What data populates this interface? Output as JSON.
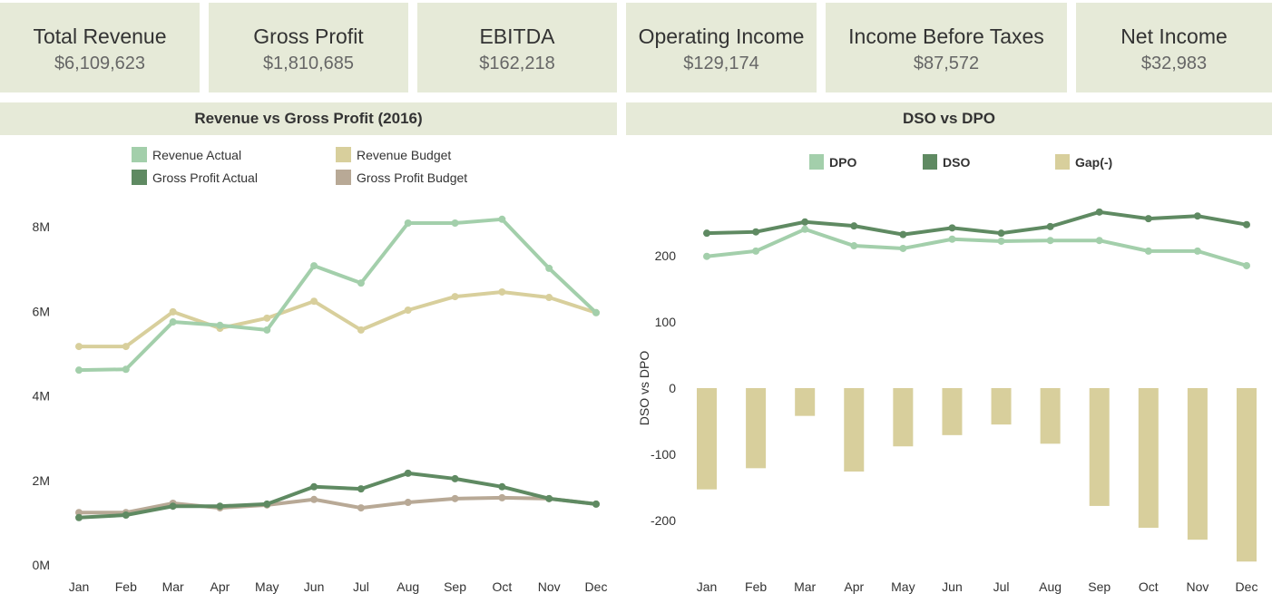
{
  "kpis": [
    {
      "label": "Total Revenue",
      "value": "$6,109,623"
    },
    {
      "label": "Gross Profit",
      "value": "$1,810,685"
    },
    {
      "label": "EBITDA",
      "value": "$162,218"
    },
    {
      "label": "Operating Income",
      "value": "$129,174"
    },
    {
      "label": "Income Before Taxes",
      "value": "$87,572"
    },
    {
      "label": "Net Income",
      "value": "$32,983"
    }
  ],
  "colors": {
    "revenue_actual": "#a3cfab",
    "revenue_budget": "#d8cf9c",
    "gp_actual": "#5f8a62",
    "gp_budget": "#b8a996",
    "header_bg": "#e6ead8"
  },
  "chart_data": [
    {
      "type": "line",
      "title": "Revenue vs Gross Profit (2016)",
      "categories": [
        "Jan",
        "Feb",
        "Mar",
        "Apr",
        "May",
        "Jun",
        "Jul",
        "Aug",
        "Sep",
        "Oct",
        "Nov",
        "Dec"
      ],
      "ylim": [
        0,
        8.6
      ],
      "yticks": [
        "0M",
        "2M",
        "4M",
        "6M",
        "8M"
      ],
      "ytick_values": [
        0,
        2,
        4,
        6,
        8
      ],
      "unit": "M",
      "legend_position": "top",
      "grid": false,
      "series": [
        {
          "name": "Revenue Actual",
          "color": "#a3cfab",
          "values": [
            4.61,
            4.63,
            5.75,
            5.67,
            5.56,
            7.08,
            6.67,
            8.09,
            8.09,
            8.18,
            7.02,
            5.97
          ]
        },
        {
          "name": "Revenue Budget",
          "color": "#d8cf9c",
          "values": [
            5.17,
            5.17,
            5.99,
            5.6,
            5.84,
            6.24,
            5.56,
            6.03,
            6.35,
            6.46,
            6.33,
            5.97
          ]
        },
        {
          "name": "Gross Profit Actual",
          "color": "#5f8a62",
          "values": [
            1.12,
            1.18,
            1.39,
            1.39,
            1.44,
            1.85,
            1.8,
            2.17,
            2.04,
            1.85,
            1.57,
            1.44
          ]
        },
        {
          "name": "Gross Profit Budget",
          "color": "#b8a996",
          "values": [
            1.24,
            1.24,
            1.46,
            1.35,
            1.42,
            1.55,
            1.35,
            1.48,
            1.57,
            1.59,
            1.57,
            1.44
          ]
        }
      ]
    },
    {
      "type": "line+bar",
      "title": "DSO vs DPO",
      "ylabel": "DSO vs DPO",
      "categories": [
        "Jan",
        "Feb",
        "Mar",
        "Apr",
        "May",
        "Jun",
        "Jul",
        "Aug",
        "Sep",
        "Oct",
        "Nov",
        "Dec"
      ],
      "ylim": [
        -270,
        280
      ],
      "yticks": [
        "-200",
        "-100",
        "0",
        "100",
        "200"
      ],
      "ytick_values": [
        -200,
        -100,
        0,
        100,
        200
      ],
      "legend_position": "top",
      "grid": false,
      "series": [
        {
          "name": "DPO",
          "kind": "line",
          "color": "#a3cfab",
          "values": [
            199,
            207,
            240,
            215,
            211,
            225,
            222,
            223,
            223,
            207,
            207,
            185
          ]
        },
        {
          "name": "DSO",
          "kind": "line",
          "color": "#5f8a62",
          "values": [
            234,
            236,
            251,
            245,
            232,
            242,
            234,
            244,
            266,
            256,
            260,
            247
          ]
        },
        {
          "name": "Gap(-)",
          "kind": "bar",
          "color": "#d8cf9c",
          "values": [
            -153,
            -121,
            -42,
            -126,
            -88,
            -71,
            -55,
            -84,
            -178,
            -211,
            -229,
            -262
          ]
        }
      ]
    }
  ]
}
